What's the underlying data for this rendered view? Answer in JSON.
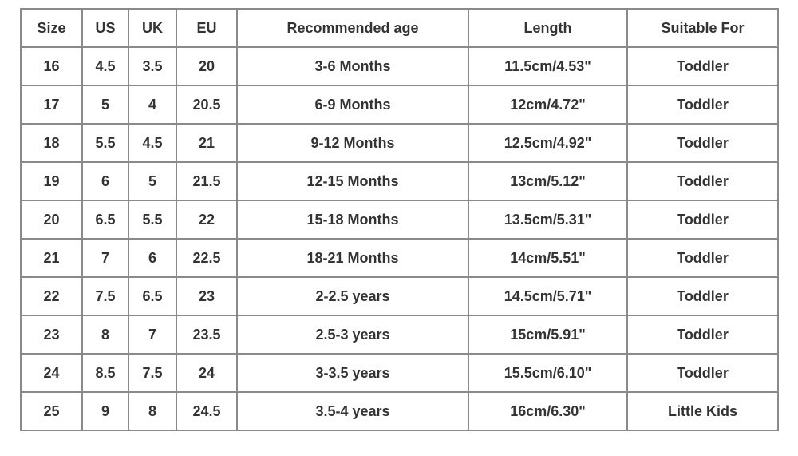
{
  "table": {
    "header": [
      "Size",
      "US",
      "UK",
      "EU",
      "Recommended age",
      "Length",
      "Suitable For"
    ],
    "rows": [
      [
        "16",
        "4.5",
        "3.5",
        "20",
        "3-6 Months",
        "11.5cm/4.53\"",
        "Toddler"
      ],
      [
        "17",
        "5",
        "4",
        "20.5",
        "6-9 Months",
        "12cm/4.72\"",
        "Toddler"
      ],
      [
        "18",
        "5.5",
        "4.5",
        "21",
        "9-12 Months",
        "12.5cm/4.92\"",
        "Toddler"
      ],
      [
        "19",
        "6",
        "5",
        "21.5",
        "12-15 Months",
        "13cm/5.12\"",
        "Toddler"
      ],
      [
        "20",
        "6.5",
        "5.5",
        "22",
        "15-18 Months",
        "13.5cm/5.31\"",
        "Toddler"
      ],
      [
        "21",
        "7",
        "6",
        "22.5",
        "18-21 Months",
        "14cm/5.51\"",
        "Toddler"
      ],
      [
        "22",
        "7.5",
        "6.5",
        "23",
        "2-2.5 years",
        "14.5cm/5.71\"",
        "Toddler"
      ],
      [
        "23",
        "8",
        "7",
        "23.5",
        "2.5-3 years",
        "15cm/5.91\"",
        "Toddler"
      ],
      [
        "24",
        "8.5",
        "7.5",
        "24",
        "3-3.5 years",
        "15.5cm/6.10\"",
        "Toddler"
      ],
      [
        "25",
        "9",
        "8",
        "24.5",
        "3.5-4 years",
        "16cm/6.30\"",
        "Little Kids"
      ]
    ]
  }
}
